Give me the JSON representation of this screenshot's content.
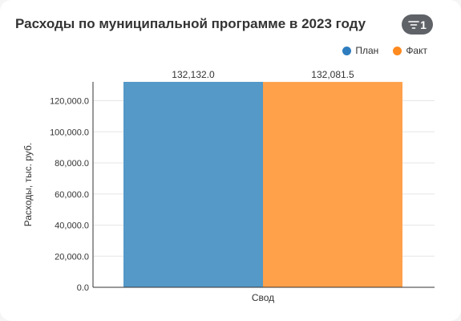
{
  "header": {
    "title": "Расходы по муниципальной программе в 2023 году",
    "filter_count": "1",
    "filter_icon": "filter-icon"
  },
  "colors": {
    "plan": "#5499c7",
    "fact": "#ffa04a",
    "plan_legend": "#2f7dbf",
    "fact_legend": "#ff8a1f"
  },
  "chart_data": {
    "type": "bar",
    "categories": [
      "Свод"
    ],
    "series": [
      {
        "name": "План",
        "values": [
          132132.0
        ],
        "label": "132,132.0"
      },
      {
        "name": "Факт",
        "values": [
          132081.5
        ],
        "label": "132,081.5"
      }
    ],
    "ylabel": "Расходы, тыс. руб.",
    "xlabel": "",
    "ylim": [
      0,
      132132
    ],
    "yticks": [
      0,
      20000,
      40000,
      60000,
      80000,
      100000,
      120000
    ],
    "ytick_labels": [
      "0.0",
      "20,000.0",
      "40,000.0",
      "60,000.0",
      "80,000.0",
      "100,000.0",
      "120,000.0"
    ],
    "grid": true,
    "legend": "top-right"
  }
}
